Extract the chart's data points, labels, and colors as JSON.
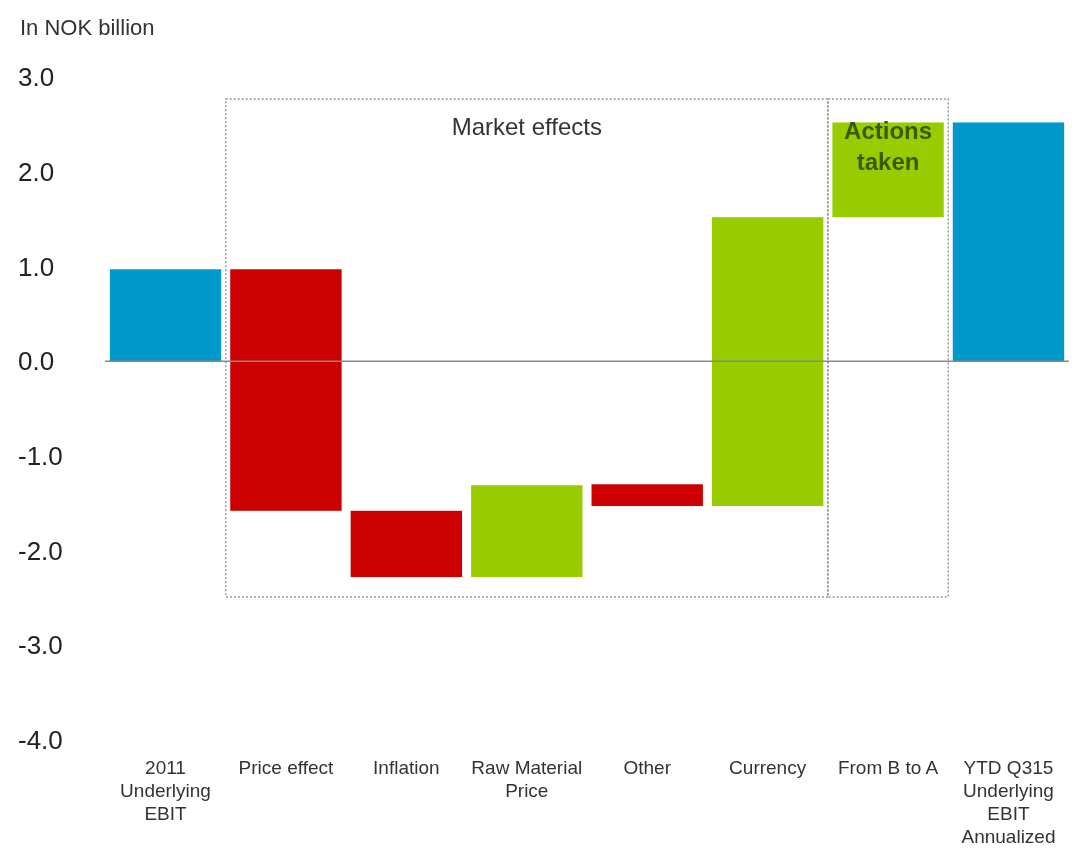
{
  "chart_data": {
    "type": "bar",
    "ylabel": "In NOK billion",
    "categories": [
      "2011 Underlying EBIT",
      "Price effect",
      "Inflation",
      "Raw Material Price",
      "Other",
      "Currency",
      "From B to A",
      "YTD Q315 Underlying EBIT Annualized"
    ],
    "values": [
      0.97,
      -2.55,
      -0.7,
      0.97,
      -0.23,
      3.05,
      1.0,
      2.52
    ],
    "base": [
      0,
      0.97,
      -1.58,
      -2.28,
      -1.3,
      -1.53,
      1.52,
      0
    ],
    "colors": [
      "#0099cc",
      "#cc0000",
      "#cc0000",
      "#99cc00",
      "#cc0000",
      "#99cc00",
      "#99cc00",
      "#0099cc"
    ],
    "ylim": [
      -4,
      3
    ],
    "yticks": [
      {
        "value": -4,
        "label": "-4.0"
      },
      {
        "value": -3,
        "label": "-3.0"
      },
      {
        "value": -2,
        "label": "-2.0"
      },
      {
        "value": -1,
        "label": "-1.0"
      },
      {
        "value": 0,
        "label": "0.0"
      },
      {
        "value": 1,
        "label": "1.0"
      },
      {
        "value": 2,
        "label": "2.0"
      },
      {
        "value": 3,
        "label": "3.0"
      }
    ],
    "annotations": [
      "Market effects",
      "Actions taken"
    ]
  }
}
